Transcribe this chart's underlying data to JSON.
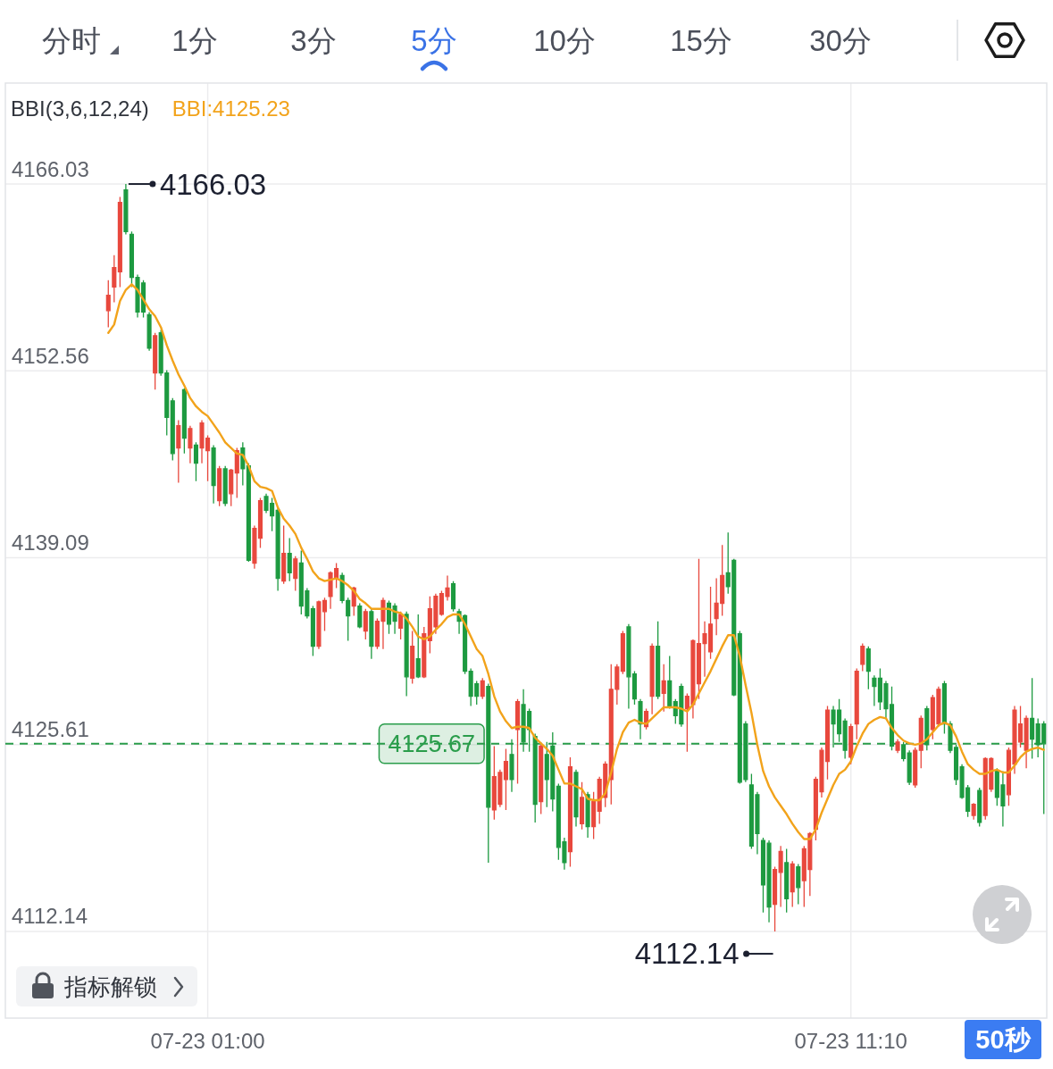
{
  "chart_data": {
    "type": "candlestick",
    "title": "BBI(3,6,12,24)",
    "categories": [
      null,
      null,
      null,
      null,
      null,
      null,
      null,
      null,
      null,
      null,
      null,
      null,
      null,
      null,
      null,
      null,
      null,
      "07-23 01:00",
      null,
      null,
      null,
      null,
      null,
      null,
      null,
      null,
      null,
      null,
      null,
      null,
      null,
      null,
      null,
      null,
      null,
      null,
      null,
      null,
      null,
      null,
      null,
      null,
      null,
      null,
      null,
      null,
      null,
      null,
      null,
      null,
      null,
      null,
      null,
      null,
      null,
      null,
      null,
      null,
      null,
      null,
      null,
      null,
      null,
      null,
      null,
      null,
      null,
      null,
      null,
      null,
      null,
      null,
      null,
      null,
      null,
      null,
      null,
      null,
      null,
      null,
      null,
      null,
      null,
      null,
      null,
      null,
      null,
      null,
      null,
      null,
      null,
      null,
      null,
      null,
      null,
      null,
      null,
      null,
      null,
      null,
      null,
      null,
      null,
      null,
      null,
      null,
      null,
      null,
      null,
      null,
      null,
      null,
      null,
      null,
      null,
      null,
      null,
      null,
      null,
      null,
      null,
      null,
      null,
      null,
      null,
      null,
      null,
      "07-23 11:10",
      null,
      null,
      null,
      null,
      null,
      null,
      null,
      null,
      null,
      null,
      null,
      null,
      null,
      null,
      null,
      null,
      null,
      null,
      null,
      null,
      null,
      null,
      null,
      null,
      null,
      null,
      null,
      null,
      null,
      null,
      null,
      null,
      null
    ],
    "ohlc": [
      [
        4156.9,
        4159.1,
        4155.7,
        4158.0
      ],
      [
        4158.6,
        4160.9,
        4157.5,
        4160.0
      ],
      [
        4159.7,
        4165.1,
        4158.6,
        4164.7
      ],
      [
        4165.6,
        4166.03,
        4162.4,
        4162.6
      ],
      [
        4162.4,
        4162.6,
        4158.6,
        4159.3
      ],
      [
        4159.3,
        4159.5,
        4156.4,
        4156.8
      ],
      [
        4158.9,
        4159.1,
        4156.4,
        4156.8
      ],
      [
        4156.6,
        4156.8,
        4154.0,
        4154.2
      ],
      [
        4152.4,
        4155.3,
        4151.2,
        4155.1
      ],
      [
        4155.3,
        4155.5,
        4152.2,
        4152.4
      ],
      [
        4152.4,
        4152.6,
        4147.9,
        4149.2
      ],
      [
        4150.4,
        4150.6,
        4146.1,
        4146.6
      ],
      [
        4147.0,
        4149.0,
        4144.5,
        4148.6
      ],
      [
        4151.2,
        4151.3,
        4146.6,
        4147.7
      ],
      [
        4147.0,
        4148.6,
        4145.9,
        4148.4
      ],
      [
        4147.2,
        4147.4,
        4144.6,
        4145.9
      ],
      [
        4147.0,
        4149.0,
        4145.9,
        4148.8
      ],
      [
        4146.8,
        4147.9,
        4144.6,
        4147.7
      ],
      [
        4147.0,
        4147.2,
        4143.0,
        4144.3
      ],
      [
        4143.2,
        4145.7,
        4142.8,
        4145.5
      ],
      [
        4145.5,
        4145.7,
        4142.8,
        4143.0
      ],
      [
        4143.7,
        4145.5,
        4142.8,
        4145.4
      ],
      [
        4145.2,
        4147.0,
        4143.4,
        4146.8
      ],
      [
        4147.0,
        4147.4,
        4144.3,
        4145.5
      ],
      [
        4145.7,
        4145.9,
        4138.8,
        4138.9
      ],
      [
        4138.7,
        4141.4,
        4138.3,
        4141.2
      ],
      [
        4140.5,
        4143.4,
        4139.8,
        4143.2
      ],
      [
        4143.5,
        4143.7,
        4142.3,
        4142.5
      ],
      [
        4143.0,
        4143.4,
        4141.0,
        4142.1
      ],
      [
        4142.5,
        4142.7,
        4136.7,
        4137.6
      ],
      [
        4137.4,
        4141.4,
        4137.2,
        4139.4
      ],
      [
        4139.4,
        4140.5,
        4137.4,
        4138.0
      ],
      [
        4137.6,
        4139.2,
        4136.7,
        4139.0
      ],
      [
        4138.7,
        4139.6,
        4135.0,
        4135.6
      ],
      [
        4136.7,
        4136.9,
        4134.7,
        4134.9
      ],
      [
        4135.4,
        4135.6,
        4132.0,
        4132.7
      ],
      [
        4132.7,
        4136.0,
        4132.5,
        4135.9
      ],
      [
        4135.2,
        4136.2,
        4133.8,
        4136.0
      ],
      [
        4136.3,
        4138.1,
        4135.4,
        4138.0
      ],
      [
        4137.6,
        4138.7,
        4136.9,
        4138.3
      ],
      [
        4137.8,
        4138.0,
        4135.8,
        4136.0
      ],
      [
        4136.0,
        4136.2,
        4133.1,
        4134.9
      ],
      [
        4135.6,
        4137.0,
        4134.9,
        4136.9
      ],
      [
        4135.6,
        4135.8,
        4134.0,
        4134.1
      ],
      [
        4133.8,
        4135.4,
        4133.2,
        4135.2
      ],
      [
        4135.2,
        4135.4,
        4131.8,
        4132.7
      ],
      [
        4132.7,
        4134.7,
        4132.5,
        4134.5
      ],
      [
        4134.5,
        4136.2,
        4132.5,
        4136.0
      ],
      [
        4135.8,
        4136.0,
        4133.6,
        4134.3
      ],
      [
        4135.6,
        4135.8,
        4133.6,
        4134.5
      ],
      [
        4134.0,
        4135.2,
        4133.2,
        4135.0
      ],
      [
        4135.0,
        4135.2,
        4129.1,
        4130.5
      ],
      [
        4130.4,
        4133.8,
        4130.0,
        4132.7
      ],
      [
        4131.8,
        4135.0,
        4130.4,
        4130.5
      ],
      [
        4130.5,
        4134.1,
        4130.4,
        4133.6
      ],
      [
        4133.1,
        4136.3,
        4132.2,
        4135.4
      ],
      [
        4134.1,
        4136.5,
        4133.6,
        4136.3
      ],
      [
        4135.0,
        4136.7,
        4134.9,
        4136.5
      ],
      [
        4136.3,
        4137.8,
        4136.0,
        4136.9
      ],
      [
        4137.2,
        4137.4,
        4135.2,
        4135.4
      ],
      [
        4135.2,
        4135.4,
        4133.6,
        4134.5
      ],
      [
        4134.9,
        4135.0,
        4130.7,
        4130.9
      ],
      [
        4130.9,
        4131.1,
        4128.4,
        4129.1
      ],
      [
        4130.0,
        4130.2,
        4128.5,
        4129.1
      ],
      [
        4129.1,
        4130.4,
        4128.9,
        4130.2
      ],
      [
        4129.8,
        4130.0,
        4117.1,
        4121.1
      ],
      [
        4120.9,
        4125.5,
        4120.2,
        4123.3
      ],
      [
        4121.3,
        4123.8,
        4121.1,
        4123.6
      ],
      [
        4123.1,
        4125.3,
        4120.9,
        4124.4
      ],
      [
        4124.9,
        4126.0,
        4122.2,
        4123.1
      ],
      [
        4126.7,
        4128.9,
        4122.8,
        4128.7
      ],
      [
        4128.5,
        4129.6,
        4125.1,
        4125.8
      ],
      [
        4128.0,
        4128.2,
        4125.1,
        4126.7
      ],
      [
        4126.2,
        4126.4,
        4120.0,
        4121.3
      ],
      [
        4121.5,
        4125.6,
        4120.6,
        4125.5
      ],
      [
        4124.9,
        4125.8,
        4121.1,
        4123.1
      ],
      [
        4125.5,
        4126.5,
        4120.8,
        4121.7
      ],
      [
        4122.6,
        4122.8,
        4117.3,
        4118.2
      ],
      [
        4118.6,
        4118.9,
        4116.6,
        4117.1
      ],
      [
        4117.9,
        4124.7,
        4116.8,
        4124.0
      ],
      [
        4123.6,
        4123.8,
        4119.7,
        4120.4
      ],
      [
        4119.9,
        4122.9,
        4119.5,
        4121.8
      ],
      [
        4122.0,
        4122.2,
        4118.9,
        4119.7
      ],
      [
        4119.7,
        4122.2,
        4118.8,
        4121.5
      ],
      [
        4120.8,
        4123.3,
        4119.9,
        4123.1
      ],
      [
        4121.8,
        4124.4,
        4121.1,
        4124.2
      ],
      [
        4123.1,
        4131.4,
        4121.3,
        4129.6
      ],
      [
        4129.6,
        4131.4,
        4128.5,
        4131.2
      ],
      [
        4130.9,
        4133.8,
        4130.7,
        4133.6
      ],
      [
        4134.1,
        4134.3,
        4128.2,
        4130.5
      ],
      [
        4130.7,
        4130.9,
        4128.5,
        4128.9
      ],
      [
        4128.7,
        4128.9,
        4126.0,
        4127.1
      ],
      [
        4126.9,
        4128.2,
        4126.7,
        4128.0
      ],
      [
        4129.1,
        4132.9,
        4127.8,
        4132.7
      ],
      [
        4132.7,
        4134.5,
        4128.9,
        4129.1
      ],
      [
        4129.3,
        4131.4,
        4128.0,
        4130.2
      ],
      [
        4130.2,
        4132.0,
        4128.2,
        4128.4
      ],
      [
        4128.7,
        4128.9,
        4127.1,
        4127.7
      ],
      [
        4129.8,
        4130.0,
        4126.9,
        4127.1
      ],
      [
        4128.2,
        4129.3,
        4125.1,
        4129.1
      ],
      [
        4128.5,
        4133.2,
        4127.5,
        4133.1
      ],
      [
        4130.0,
        4139.0,
        4128.9,
        4132.9
      ],
      [
        4132.9,
        4134.5,
        4130.5,
        4133.6
      ],
      [
        4132.3,
        4137.0,
        4131.8,
        4134.3
      ],
      [
        4134.7,
        4137.6,
        4133.5,
        4135.8
      ],
      [
        4135.8,
        4140.0,
        4134.9,
        4137.8
      ],
      [
        4138.0,
        4140.9,
        4136.5,
        4137.0
      ],
      [
        4138.9,
        4139.0,
        4129.1,
        4129.2
      ],
      [
        4133.6,
        4133.8,
        4122.8,
        4122.9
      ],
      [
        4127.1,
        4127.3,
        4122.9,
        4123.1
      ],
      [
        4122.7,
        4123.5,
        4118.1,
        4118.3
      ],
      [
        4122.0,
        4122.2,
        4117.7,
        4119.2
      ],
      [
        4118.7,
        4118.9,
        4113.5,
        4115.5
      ],
      [
        4118.5,
        4118.7,
        4112.8,
        4113.9
      ],
      [
        4114.1,
        4116.8,
        4112.14,
        4116.6
      ],
      [
        4116.4,
        4118.3,
        4113.9,
        4117.9
      ],
      [
        4117.1,
        4118.1,
        4113.5,
        4114.5
      ],
      [
        4115.0,
        4117.2,
        4113.9,
        4117.0
      ],
      [
        4116.8,
        4117.0,
        4114.1,
        4115.3
      ],
      [
        4115.8,
        4118.3,
        4113.9,
        4118.1
      ],
      [
        4116.6,
        4119.3,
        4114.7,
        4119.2
      ],
      [
        4119.5,
        4123.3,
        4118.7,
        4123.1
      ],
      [
        4122.2,
        4125.4,
        4121.8,
        4125.2
      ],
      [
        4124.4,
        4128.4,
        4123.1,
        4128.1
      ],
      [
        4128.1,
        4128.4,
        4125.4,
        4127.1
      ],
      [
        4128.1,
        4128.9,
        4125.8,
        4126.4
      ],
      [
        4127.3,
        4127.5,
        4124.6,
        4125.2
      ],
      [
        4124.7,
        4127.1,
        4124.2,
        4126.9
      ],
      [
        4127.1,
        4131.1,
        4126.0,
        4130.9
      ],
      [
        4131.4,
        4132.9,
        4130.9,
        4132.7
      ],
      [
        4132.5,
        4132.7,
        4129.6,
        4130.9
      ],
      [
        4130.4,
        4130.6,
        4128.4,
        4129.8
      ],
      [
        4130.4,
        4131.1,
        4128.1,
        4128.7
      ],
      [
        4130.0,
        4130.2,
        4127.5,
        4128.2
      ],
      [
        4128.5,
        4129.8,
        4125.2,
        4125.5
      ],
      [
        4125.2,
        4126.0,
        4125.0,
        4125.8
      ],
      [
        4125.6,
        4125.8,
        4124.4,
        4124.6
      ],
      [
        4125.0,
        4125.2,
        4122.7,
        4122.9
      ],
      [
        4122.7,
        4125.4,
        4122.5,
        4125.2
      ],
      [
        4125.2,
        4127.7,
        4123.9,
        4127.5
      ],
      [
        4128.2,
        4128.4,
        4125.2,
        4125.6
      ],
      [
        4126.7,
        4129.2,
        4126.0,
        4129.0
      ],
      [
        4127.1,
        4129.8,
        4126.9,
        4129.6
      ],
      [
        4130.0,
        4130.2,
        4126.4,
        4127.1
      ],
      [
        4127.1,
        4127.3,
        4125.0,
        4125.2
      ],
      [
        4125.4,
        4125.6,
        4122.7,
        4123.1
      ],
      [
        4124.0,
        4124.2,
        4121.7,
        4121.8
      ],
      [
        4122.5,
        4122.7,
        4120.4,
        4120.8
      ],
      [
        4120.5,
        4121.4,
        4120.2,
        4121.3
      ],
      [
        4122.3,
        4122.5,
        4119.7,
        4120.0
      ],
      [
        4120.5,
        4124.7,
        4120.2,
        4124.6
      ],
      [
        4122.4,
        4124.7,
        4122.2,
        4124.6
      ],
      [
        4123.7,
        4123.9,
        4121.2,
        4121.8
      ],
      [
        4122.7,
        4123.7,
        4119.7,
        4121.2
      ],
      [
        4122.0,
        4125.4,
        4121.2,
        4125.2
      ],
      [
        4124.2,
        4128.4,
        4123.5,
        4128.1
      ],
      [
        4125.8,
        4128.4,
        4125.4,
        4127.1
      ],
      [
        4125.2,
        4127.7,
        4123.9,
        4127.5
      ],
      [
        4127.5,
        4130.4,
        4124.6,
        4126.0
      ],
      [
        4127.1,
        4127.5,
        4124.7,
        4125.6
      ],
      [
        4127.1,
        4127.3,
        4120.6,
        4125.67
      ]
    ],
    "colors": [
      "#e8483d",
      "#e8483d",
      "#e8483d",
      "#1d9a40",
      "#1d9a40",
      "#1d9a40",
      "#1d9a40",
      "#1d9a40",
      "#e8483d",
      "#1d9a40",
      "#1d9a40",
      "#1d9a40",
      "#e8483d",
      "#1d9a40",
      "#e8483d",
      "#1d9a40",
      "#e8483d",
      "#e8483d",
      "#1d9a40",
      "#e8483d",
      "#1d9a40",
      "#e8483d",
      "#e8483d",
      "#1d9a40",
      "#1d9a40",
      "#e8483d",
      "#e8483d",
      "#1d9a40",
      "#1d9a40",
      "#1d9a40",
      "#e8483d",
      "#1d9a40",
      "#e8483d",
      "#1d9a40",
      "#1d9a40",
      "#1d9a40",
      "#e8483d",
      "#e8483d",
      "#e8483d",
      "#e8483d",
      "#1d9a40",
      "#1d9a40",
      "#e8483d",
      "#1d9a40",
      "#e8483d",
      "#1d9a40",
      "#e8483d",
      "#e8483d",
      "#1d9a40",
      "#1d9a40",
      "#e8483d",
      "#1d9a40",
      "#e8483d",
      "#1d9a40",
      "#e8483d",
      "#e8483d",
      "#e8483d",
      "#e8483d",
      "#e8483d",
      "#1d9a40",
      "#1d9a40",
      "#1d9a40",
      "#1d9a40",
      "#1d9a40",
      "#e8483d",
      "#1d9a40",
      "#e8483d",
      "#e8483d",
      "#e8483d",
      "#1d9a40",
      "#e8483d",
      "#1d9a40",
      "#1d9a40",
      "#1d9a40",
      "#e8483d",
      "#1d9a40",
      "#1d9a40",
      "#1d9a40",
      "#1d9a40",
      "#e8483d",
      "#1d9a40",
      "#e8483d",
      "#1d9a40",
      "#e8483d",
      "#e8483d",
      "#e8483d",
      "#e8483d",
      "#e8483d",
      "#e8483d",
      "#1d9a40",
      "#1d9a40",
      "#1d9a40",
      "#e8483d",
      "#e8483d",
      "#1d9a40",
      "#e8483d",
      "#1d9a40",
      "#1d9a40",
      "#1d9a40",
      "#e8483d",
      "#e8483d",
      "#e8483d",
      "#e8483d",
      "#e8483d",
      "#e8483d",
      "#e8483d",
      "#1d9a40",
      "#1d9a40",
      "#1d9a40",
      "#1d9a40",
      "#1d9a40",
      "#1d9a40",
      "#1d9a40",
      "#1d9a40",
      "#e8483d",
      "#e8483d",
      "#1d9a40",
      "#e8483d",
      "#1d9a40",
      "#e8483d",
      "#e8483d",
      "#e8483d",
      "#e8483d",
      "#e8483d",
      "#1d9a40",
      "#1d9a40",
      "#1d9a40",
      "#e8483d",
      "#e8483d",
      "#e8483d",
      "#1d9a40",
      "#1d9a40",
      "#1d9a40",
      "#1d9a40",
      "#1d9a40",
      "#e8483d",
      "#1d9a40",
      "#1d9a40",
      "#e8483d",
      "#e8483d",
      "#1d9a40",
      "#e8483d",
      "#e8483d",
      "#1d9a40",
      "#1d9a40",
      "#1d9a40",
      "#1d9a40",
      "#1d9a40",
      "#e8483d",
      "#1d9a40",
      "#e8483d",
      "#e8483d",
      "#1d9a40",
      "#1d9a40",
      "#e8483d",
      "#e8483d",
      "#e8483d",
      "#e8483d",
      "#1d9a40",
      "#1d9a40",
      "#1d9a40"
    ],
    "series": [
      {
        "name": "BBI:4125.23",
        "type": "line",
        "color": "#f2a31b",
        "values": [
          4155.3,
          4155.9,
          4157.6,
          4158.4,
          4158.8,
          4158.4,
          4157.7,
          4157.0,
          4156.5,
          4155.7,
          4154.4,
          4153.3,
          4152.3,
          4151.5,
          4150.6,
          4150.0,
          4149.6,
          4149.3,
          4148.7,
          4148.1,
          4147.4,
          4147.0,
          4146.6,
          4146.5,
          4145.7,
          4144.6,
          4144.2,
          4144.1,
          4143.9,
          4142.7,
          4141.9,
          4141.4,
          4140.8,
          4139.8,
          4139.0,
          4138.1,
          4137.6,
          4137.4,
          4137.5,
          4137.6,
          4137.4,
          4137.1,
          4136.7,
          4136.1,
          4135.8,
          4135.4,
          4135.4,
          4135.4,
          4135.4,
          4135.2,
          4135.1,
          4134.7,
          4134.1,
          4133.4,
          4133.2,
          4133.4,
          4133.9,
          4134.3,
          4134.8,
          4135.0,
          4135.0,
          4134.3,
          4133.4,
          4132.5,
          4132.0,
          4130.7,
          4129.1,
          4128.0,
          4127.3,
          4126.8,
          4126.9,
          4126.9,
          4126.8,
          4126.1,
          4125.7,
          4125.3,
          4124.8,
          4123.8,
          4122.8,
          4122.8,
          4122.6,
          4122.4,
          4121.7,
          4121.6,
          4121.6,
          4122.1,
          4123.6,
          4125.3,
          4126.5,
          4127.2,
          4127.4,
          4127.2,
          4127.1,
          4127.5,
          4127.9,
          4128.3,
          4128.3,
          4128.3,
          4128.2,
          4128.0,
          4128.5,
          4129.3,
          4130.1,
          4130.9,
          4131.8,
          4132.7,
          4133.5,
          4133.5,
          4132.0,
          4129.9,
          4127.9,
          4125.6,
          4123.7,
          4122.6,
          4121.8,
          4121.2,
          4120.6,
          4119.9,
          4119.3,
          4118.8,
          4118.8,
          4119.5,
          4120.7,
          4121.7,
          4122.7,
          4123.5,
          4123.8,
          4124.4,
          4125.5,
          4126.4,
          4127.1,
          4127.4,
          4127.6,
          4127.5,
          4126.8,
          4126.3,
          4125.9,
          4125.7,
          4125.6,
          4125.7,
          4126.0,
          4126.5,
          4127.0,
          4127.2,
          4127.0,
          4126.2,
          4125.1,
          4124.2,
          4123.8,
          4123.5,
          4123.5,
          4123.7,
          4123.8,
          4123.6,
          4123.6,
          4124.1,
          4124.7,
          4125.1,
          4125.3,
          4125.4,
          4125.23
        ]
      }
    ],
    "ylim": [
      4105.89,
      4173.31
    ],
    "yticks": [
      4166.03,
      4152.56,
      4139.09,
      4125.61,
      4112.14
    ],
    "grid": true,
    "legend": "top left",
    "ref_lines": [
      {
        "axis": "y",
        "value": 4125.67,
        "label": "4125.67",
        "color": "#2a9d4b",
        "line_style": "dashed"
      }
    ],
    "annotations": [
      "分时",
      "1分",
      "3分",
      "5分",
      "10分",
      "15分",
      "30分",
      "指标解锁",
      "50秒",
      "4166.03",
      "4112.14"
    ]
  }
}
